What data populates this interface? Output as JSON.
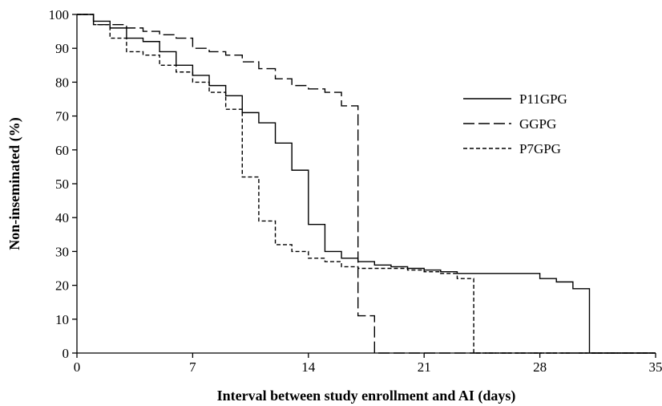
{
  "chart_data": {
    "type": "line",
    "title": "",
    "xlabel": "Interval between study enrollment and AI (days)",
    "ylabel": "Non-inseminated (%)",
    "xlim": [
      0,
      35
    ],
    "ylim": [
      0,
      100
    ],
    "x_ticks": [
      0,
      7,
      14,
      21,
      28,
      35
    ],
    "y_ticks": [
      0,
      10,
      20,
      30,
      40,
      50,
      60,
      70,
      80,
      90,
      100
    ],
    "grid": false,
    "legend_position": "right",
    "series": [
      {
        "name": "P11GPG",
        "style": "solid",
        "color": "#000000",
        "points": [
          [
            0,
            100
          ],
          [
            1,
            98
          ],
          [
            2,
            96
          ],
          [
            3,
            93
          ],
          [
            4,
            92
          ],
          [
            5,
            89
          ],
          [
            6,
            85
          ],
          [
            7,
            82
          ],
          [
            8,
            79
          ],
          [
            9,
            76
          ],
          [
            10,
            71
          ],
          [
            11,
            68
          ],
          [
            12,
            62
          ],
          [
            13,
            54
          ],
          [
            14,
            38
          ],
          [
            15,
            30
          ],
          [
            16,
            28
          ],
          [
            17,
            27
          ],
          [
            18,
            26
          ],
          [
            19,
            25.5
          ],
          [
            20,
            25
          ],
          [
            21,
            24.5
          ],
          [
            22,
            24
          ],
          [
            23,
            23.5
          ],
          [
            24,
            23.5
          ],
          [
            25,
            23.5
          ],
          [
            26,
            23.5
          ],
          [
            27,
            23.5
          ],
          [
            28,
            22
          ],
          [
            29,
            21
          ],
          [
            30,
            19
          ],
          [
            31,
            0
          ],
          [
            35,
            0
          ]
        ]
      },
      {
        "name": "GGPG",
        "style": "longdash",
        "color": "#000000",
        "points": [
          [
            0,
            100
          ],
          [
            1,
            97
          ],
          [
            2,
            97
          ],
          [
            3,
            96
          ],
          [
            4,
            95
          ],
          [
            5,
            94
          ],
          [
            6,
            93
          ],
          [
            7,
            90
          ],
          [
            8,
            89
          ],
          [
            9,
            88
          ],
          [
            10,
            86
          ],
          [
            11,
            84
          ],
          [
            12,
            81
          ],
          [
            13,
            79
          ],
          [
            14,
            78
          ],
          [
            15,
            77
          ],
          [
            16,
            73
          ],
          [
            17,
            11
          ],
          [
            18,
            0
          ],
          [
            35,
            0
          ]
        ]
      },
      {
        "name": "P7GPG",
        "style": "dash",
        "color": "#000000",
        "points": [
          [
            0,
            100
          ],
          [
            1,
            97
          ],
          [
            2,
            93
          ],
          [
            3,
            89
          ],
          [
            4,
            88
          ],
          [
            5,
            85
          ],
          [
            6,
            83
          ],
          [
            7,
            80
          ],
          [
            8,
            77
          ],
          [
            9,
            72
          ],
          [
            10,
            52
          ],
          [
            11,
            39
          ],
          [
            12,
            32
          ],
          [
            13,
            30
          ],
          [
            14,
            28
          ],
          [
            15,
            27
          ],
          [
            16,
            25.5
          ],
          [
            17,
            25
          ],
          [
            18,
            25
          ],
          [
            19,
            25
          ],
          [
            20,
            24.5
          ],
          [
            21,
            24
          ],
          [
            22,
            23.5
          ],
          [
            23,
            22
          ],
          [
            24,
            0
          ],
          [
            35,
            0
          ]
        ]
      }
    ]
  }
}
